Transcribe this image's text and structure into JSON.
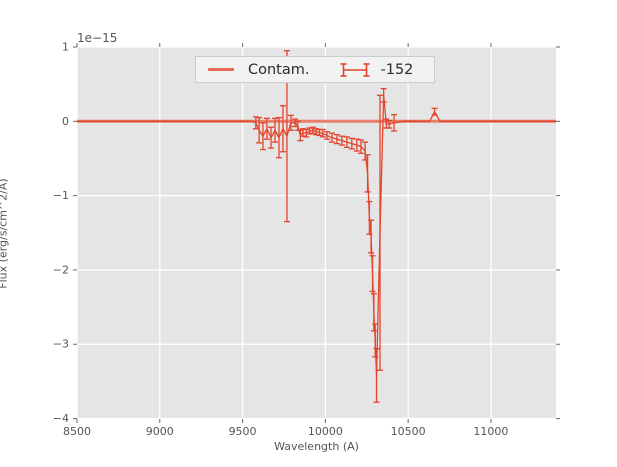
{
  "figure": {
    "background": "#ffffff",
    "axes_background": "#e5e5e5",
    "grid_color": "#ffffff",
    "tick_color": "#666666",
    "text_color": "#555555"
  },
  "chart_data": {
    "type": "line",
    "title": "",
    "xlabel": "Wavelength (A)",
    "ylabel": "Flux (erg/s/cm^2/A)",
    "offset_text": "1e−15",
    "xlim": [
      8500,
      11393
    ],
    "ylim": [
      -4.006,
      1.0
    ],
    "xticks": [
      8500,
      9000,
      9500,
      10000,
      10500,
      11000
    ],
    "xtick_labels": [
      "8500",
      "9000",
      "9500",
      "10000",
      "10500",
      "11000"
    ],
    "yticks": [
      1,
      0,
      -1,
      -2,
      -3,
      -4
    ],
    "ytick_labels": [
      "1",
      "0",
      "−1",
      "−2",
      "−3",
      "−4"
    ],
    "grid": true,
    "units_note": "y values are in units of 1e-15 erg/s/cm^2/A",
    "legend": {
      "position": "upper center",
      "entries": [
        {
          "label": "Contam.",
          "type": "line",
          "color": "#e66a55"
        },
        {
          "label": "-152",
          "type": "errorbar",
          "color": "#e2442c"
        }
      ]
    },
    "series": [
      {
        "name": "Contam.",
        "type": "line",
        "color": "#e66a55",
        "line_width": 3,
        "points": [
          [
            8500,
            0
          ],
          [
            11393,
            0
          ]
        ]
      },
      {
        "name": "-152",
        "type": "errorbar",
        "color": "#e2442c",
        "line_width": 1.3,
        "cap_half_width": 3,
        "points_format": [
          "wavelength_A",
          "flux_1e-15",
          "yerr_1e-15"
        ],
        "points": [
          [
            8500,
            0,
            0
          ],
          [
            9100,
            0,
            0
          ],
          [
            9560,
            0,
            0
          ],
          [
            9580,
            -0.02,
            0.08
          ],
          [
            9600,
            -0.12,
            0.17
          ],
          [
            9623,
            -0.2,
            0.18
          ],
          [
            9647,
            -0.1,
            0.14
          ],
          [
            9672,
            -0.22,
            0.14
          ],
          [
            9696,
            -0.12,
            0.16
          ],
          [
            9720,
            -0.22,
            0.27
          ],
          [
            9744,
            -0.1,
            0.31
          ],
          [
            9768,
            -0.2,
            1.15
          ],
          [
            9792,
            -0.02,
            0.1
          ],
          [
            9817,
            -0.02,
            0.05
          ],
          [
            9833,
            -0.06,
            0.06
          ],
          [
            9849,
            -0.19,
            0.07
          ],
          [
            9865,
            -0.15,
            0.05
          ],
          [
            9885,
            -0.16,
            0.05
          ],
          [
            9905,
            -0.13,
            0.04
          ],
          [
            9925,
            -0.12,
            0.04
          ],
          [
            9945,
            -0.14,
            0.04
          ],
          [
            9965,
            -0.15,
            0.04
          ],
          [
            9985,
            -0.16,
            0.05
          ],
          [
            10010,
            -0.19,
            0.05
          ],
          [
            10040,
            -0.22,
            0.06
          ],
          [
            10070,
            -0.24,
            0.06
          ],
          [
            10100,
            -0.26,
            0.06
          ],
          [
            10130,
            -0.28,
            0.07
          ],
          [
            10160,
            -0.3,
            0.07
          ],
          [
            10190,
            -0.32,
            0.08
          ],
          [
            10215,
            -0.34,
            0.09
          ],
          [
            10240,
            -0.4,
            0.12
          ],
          [
            10255,
            -0.7,
            0.25
          ],
          [
            10266,
            -1.3,
            0.22
          ],
          [
            10276,
            -1.55,
            0.22
          ],
          [
            10285,
            -2.05,
            0.24
          ],
          [
            10293,
            -2.57,
            0.25
          ],
          [
            10301,
            -2.95,
            0.22
          ],
          [
            10309,
            -3.42,
            0.36
          ],
          [
            10330,
            -1.5,
            1.85
          ],
          [
            10352,
            0.35,
            0.09
          ],
          [
            10368,
            -0.03,
            0.06
          ],
          [
            10385,
            -0.04,
            0.05
          ],
          [
            10415,
            -0.02,
            0.11
          ],
          [
            10470,
            0,
            0
          ],
          [
            10630,
            0,
            0
          ],
          [
            10660,
            0.13,
            0.045
          ],
          [
            10692,
            0,
            0
          ],
          [
            11000,
            0,
            0
          ],
          [
            11393,
            0,
            0
          ]
        ]
      }
    ]
  }
}
